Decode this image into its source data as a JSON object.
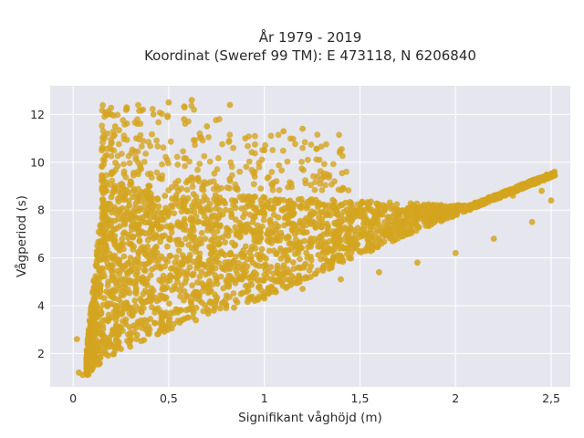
{
  "chart_data": {
    "type": "scatter",
    "title_line1": "År 1979 - 2019",
    "title_line2": "Koordinat (Sweref 99 TM): E 473118, N 6206840",
    "xlabel": "Signifikant våghöjd (m)",
    "ylabel": "Vågperiod (s)",
    "xlim": [
      -0.12,
      2.6
    ],
    "ylim": [
      0.6,
      13.2
    ],
    "x_ticks": [
      0,
      0.5,
      1,
      1.5,
      2,
      2.5
    ],
    "x_tick_labels": [
      "0",
      "0,5",
      "1",
      "1,5",
      "2",
      "2,5"
    ],
    "y_ticks": [
      2,
      4,
      6,
      8,
      10,
      12
    ],
    "y_tick_labels": [
      "2",
      "4",
      "6",
      "8",
      "10",
      "12"
    ],
    "grid": true,
    "colors": {
      "points": "#d4a520",
      "plot_bg": "#e6e6ee",
      "grid": "#ffffff"
    },
    "series": [
      {
        "x": [
          0.02,
          0.03,
          0.05,
          0.08,
          0.1,
          0.15,
          0.2,
          0.3,
          0.4,
          0.5,
          0.6,
          0.8,
          1.0,
          1.2,
          1.4,
          1.6,
          1.8,
          2.0,
          2.2,
          2.4,
          2.5,
          0.12,
          0.18,
          0.25,
          0.35,
          0.45,
          0.55,
          0.65,
          0.75,
          0.85,
          0.95,
          1.05,
          1.15,
          1.3,
          1.5,
          1.7,
          1.9,
          2.1,
          2.3,
          2.45,
          0.15,
          0.22,
          0.28,
          0.33,
          0.42,
          0.5,
          0.58,
          0.62,
          0.7,
          0.82,
          0.9,
          1.0,
          1.1,
          1.2,
          0.2,
          0.3,
          0.4,
          0.55,
          0.65,
          0.75,
          0.85,
          0.95,
          0.08,
          0.1,
          0.13,
          0.2,
          0.3
        ],
        "y": [
          2.6,
          1.2,
          1.1,
          1.3,
          1.6,
          2.0,
          2.3,
          2.7,
          3.0,
          3.3,
          3.5,
          3.9,
          4.3,
          4.7,
          5.1,
          5.4,
          5.8,
          6.2,
          6.8,
          7.5,
          8.4,
          5.0,
          6.0,
          6.5,
          7.0,
          7.2,
          7.4,
          7.5,
          7.6,
          7.6,
          7.7,
          7.8,
          7.8,
          7.9,
          8.0,
          8.0,
          8.1,
          8.3,
          8.6,
          8.8,
          10.5,
          11.5,
          12.3,
          11.0,
          12.0,
          12.5,
          11.8,
          12.6,
          11.5,
          12.4,
          11.0,
          10.5,
          11.3,
          11.4,
          9.5,
          9.2,
          9.0,
          8.8,
          9.3,
          9.0,
          8.9,
          9.4,
          2.0,
          3.0,
          4.5,
          5.5,
          6.0
        ]
      }
    ]
  }
}
